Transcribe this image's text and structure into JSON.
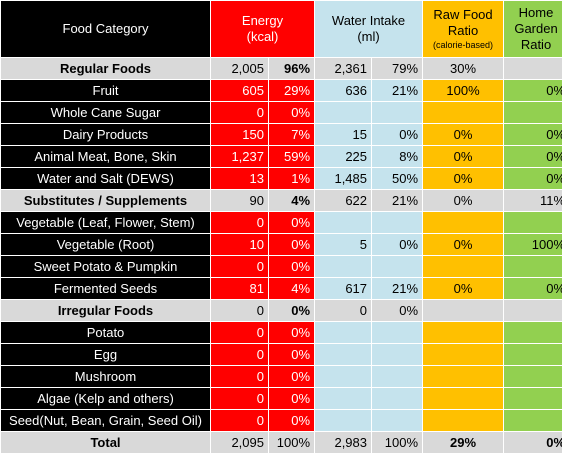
{
  "header": {
    "food": "Food Category",
    "energy_1": "Energy",
    "energy_2": "(kcal)",
    "water_1": "Water Intake",
    "water_2": "(ml)",
    "raw_1": "Raw Food",
    "raw_2": "Ratio",
    "raw_3": "(calorie-based)",
    "home_1": "Home",
    "home_2": "Garden",
    "home_3": "Ratio"
  },
  "rows": [
    {
      "type": "group",
      "name": "Regular Foods",
      "ev": "2,005",
      "ep": "96%",
      "wv": "2,361",
      "wp": "79%",
      "raw": "30%",
      "home": "",
      "bold": [
        "ep"
      ]
    },
    {
      "type": "data",
      "name": "Fruit",
      "ev": "605",
      "ep": "29%",
      "wv": "636",
      "wp": "21%",
      "raw": "100%",
      "home": "0%"
    },
    {
      "type": "data",
      "name": "Whole Cane Sugar",
      "ev": "0",
      "ep": "0%",
      "wv": "",
      "wp": "",
      "raw": "",
      "home": ""
    },
    {
      "type": "data",
      "name": "Dairy Products",
      "ev": "150",
      "ep": "7%",
      "wv": "15",
      "wp": "0%",
      "raw": "0%",
      "home": "0%"
    },
    {
      "type": "data",
      "name": "Animal Meat, Bone, Skin",
      "ev": "1,237",
      "ep": "59%",
      "wv": "225",
      "wp": "8%",
      "raw": "0%",
      "home": "0%"
    },
    {
      "type": "data",
      "name": "Water and Salt (DEWS)",
      "ev": "13",
      "ep": "1%",
      "wv": "1,485",
      "wp": "50%",
      "raw": "0%",
      "home": "0%"
    },
    {
      "type": "group",
      "name": "Substitutes / Supplements",
      "ev": "90",
      "ep": "4%",
      "wv": "622",
      "wp": "21%",
      "raw": "0%",
      "home": "11%",
      "bold": [
        "ep"
      ]
    },
    {
      "type": "data",
      "name": "Vegetable (Leaf, Flower, Stem)",
      "ev": "0",
      "ep": "0%",
      "wv": "",
      "wp": "",
      "raw": "",
      "home": ""
    },
    {
      "type": "data",
      "name": "Vegetable (Root)",
      "ev": "10",
      "ep": "0%",
      "wv": "5",
      "wp": "0%",
      "raw": "0%",
      "home": "100%"
    },
    {
      "type": "data",
      "name": "Sweet Potato & Pumpkin",
      "ev": "0",
      "ep": "0%",
      "wv": "",
      "wp": "",
      "raw": "",
      "home": ""
    },
    {
      "type": "data",
      "name": "Fermented Seeds",
      "ev": "81",
      "ep": "4%",
      "wv": "617",
      "wp": "21%",
      "raw": "0%",
      "home": "0%"
    },
    {
      "type": "group",
      "name": "Irregular Foods",
      "ev": "0",
      "ep": "0%",
      "wv": "0",
      "wp": "0%",
      "raw": "",
      "home": "",
      "bold": [
        "ep"
      ]
    },
    {
      "type": "data",
      "name": "Potato",
      "ev": "0",
      "ep": "0%",
      "wv": "",
      "wp": "",
      "raw": "",
      "home": ""
    },
    {
      "type": "data",
      "name": "Egg",
      "ev": "0",
      "ep": "0%",
      "wv": "",
      "wp": "",
      "raw": "",
      "home": ""
    },
    {
      "type": "data",
      "name": "Mushroom",
      "ev": "0",
      "ep": "0%",
      "wv": "",
      "wp": "",
      "raw": "",
      "home": ""
    },
    {
      "type": "data",
      "name": "Algae (Kelp and others)",
      "ev": "0",
      "ep": "0%",
      "wv": "",
      "wp": "",
      "raw": "",
      "home": ""
    },
    {
      "type": "data",
      "name": "Seed(Nut, Bean, Grain, Seed Oil)",
      "ev": "0",
      "ep": "0%",
      "wv": "",
      "wp": "",
      "raw": "",
      "home": ""
    },
    {
      "type": "total",
      "name": "Total",
      "ev": "2,095",
      "ep": "100%",
      "wv": "2,983",
      "wp": "100%",
      "raw": "29%",
      "home": "0%",
      "bold": [
        "raw",
        "home"
      ]
    }
  ],
  "colors": {
    "food_bg": "#000000",
    "energy_bg": "#ff0000",
    "water_bg": "#c5e3ed",
    "raw_bg": "#ffc000",
    "home_bg": "#92d050",
    "group_bg": "#d9d9d9"
  }
}
